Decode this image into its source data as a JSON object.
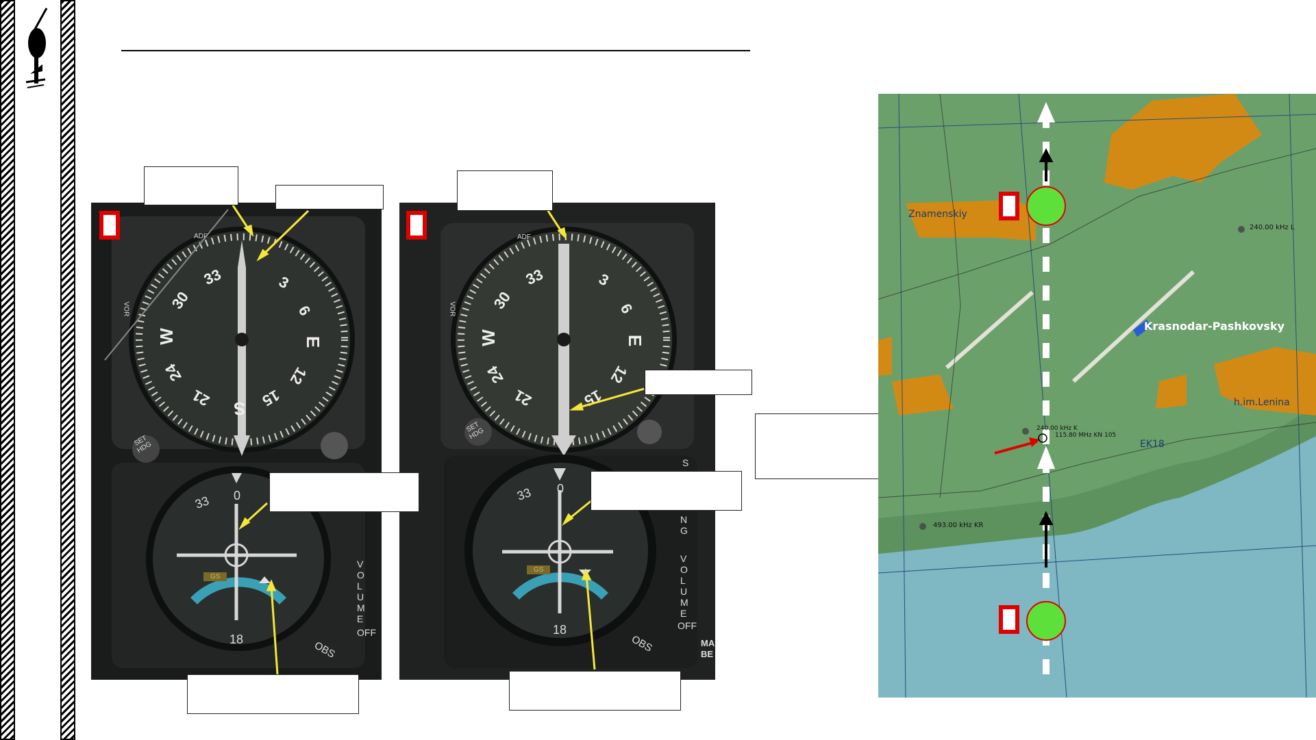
{
  "instruments": {
    "adf": {
      "label": "ADF",
      "side_label": "VOR",
      "knob_label": "SET HDG"
    },
    "cdi": {
      "glideslope_flag": "GS",
      "vertical_text": "VOLUME",
      "off_text": "OFF",
      "knob_label": "OBS",
      "edge_text": "NG",
      "side_fragment": "S",
      "right_fragment": "MA BE"
    },
    "compass_numerals": [
      "33",
      "30",
      "W",
      "24",
      "21",
      "S",
      "15",
      "12",
      "E",
      "6",
      "3"
    ],
    "cdi_numerals": [
      "33",
      "0",
      "18"
    ]
  },
  "map": {
    "places": {
      "znamenskiy": "Znamenskiy",
      "airfield": "Krasnodar-Pashkovsky",
      "lenina": "h.im.Lenina"
    },
    "beacons": {
      "ndb_top_right": "240.00 kHz L",
      "ndb_center": "240.00 kHz K",
      "vor_center": "115.80 MHz KN 105",
      "ndb_bottom_left": "493.00 kHz KR",
      "airport_code": "EK18"
    },
    "colors": {
      "land": "#6ba06b",
      "water": "#7fb7c2",
      "urban": "#d38a15",
      "waypoint": "#5de13a",
      "arrow_red": "#e00000"
    }
  },
  "colors": {
    "callout_line": "#f5e63a",
    "marker_border": "#e00000"
  }
}
